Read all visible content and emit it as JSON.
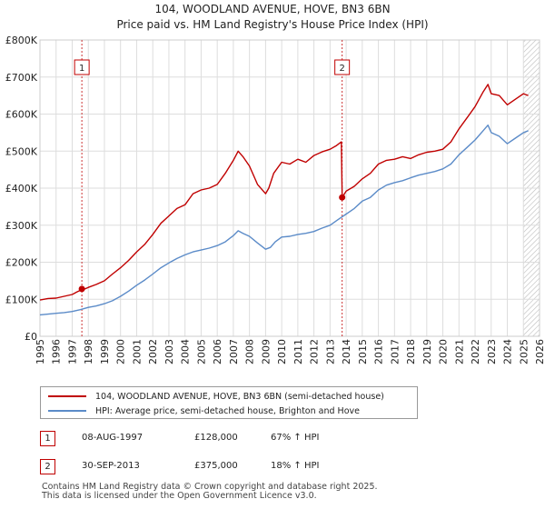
{
  "chart_data": {
    "type": "line",
    "title": "104, WOODLAND AVENUE, HOVE, BN3 6BN",
    "subtitle": "Price paid vs. HM Land Registry's House Price Index (HPI)",
    "xlabel": "",
    "ylabel": "",
    "xlim": [
      1995,
      2026
    ],
    "ylim": [
      0,
      800000
    ],
    "x_ticks": [
      "1995",
      "1996",
      "1997",
      "1998",
      "1999",
      "2000",
      "2001",
      "2002",
      "2003",
      "2004",
      "2005",
      "2006",
      "2007",
      "2008",
      "2009",
      "2010",
      "2011",
      "2012",
      "2013",
      "2014",
      "2015",
      "2016",
      "2017",
      "2018",
      "2019",
      "2020",
      "2021",
      "2022",
      "2023",
      "2024",
      "2025",
      "2026"
    ],
    "y_ticks": [
      {
        "value": 0,
        "label": "£0"
      },
      {
        "value": 100000,
        "label": "£100K"
      },
      {
        "value": 200000,
        "label": "£200K"
      },
      {
        "value": 300000,
        "label": "£300K"
      },
      {
        "value": 400000,
        "label": "£400K"
      },
      {
        "value": 500000,
        "label": "£500K"
      },
      {
        "value": 600000,
        "label": "£600K"
      },
      {
        "value": 700000,
        "label": "£700K"
      },
      {
        "value": 800000,
        "label": "£800K"
      }
    ],
    "grid": true,
    "forecast_start": 2025.0,
    "series": [
      {
        "name": "104, WOODLAND AVENUE, HOVE, BN3 6BN (semi-detached house)",
        "color": "#c00000",
        "x": [
          1995.0,
          1995.5,
          1996.0,
          1996.5,
          1997.0,
          1997.3,
          1997.6,
          1997.8,
          1998.0,
          1998.5,
          1999.0,
          1999.5,
          2000.0,
          2000.5,
          2001.0,
          2001.5,
          2002.0,
          2002.5,
          2003.0,
          2003.5,
          2004.0,
          2004.5,
          2005.0,
          2005.5,
          2006.0,
          2006.5,
          2007.0,
          2007.3,
          2007.6,
          2008.0,
          2008.5,
          2009.0,
          2009.2,
          2009.5,
          2010.0,
          2010.5,
          2011.0,
          2011.5,
          2012.0,
          2012.5,
          2013.0,
          2013.4,
          2013.7,
          2013.75,
          2014.0,
          2014.5,
          2015.0,
          2015.5,
          2016.0,
          2016.5,
          2017.0,
          2017.5,
          2018.0,
          2018.5,
          2019.0,
          2019.5,
          2020.0,
          2020.5,
          2021.0,
          2021.5,
          2022.0,
          2022.5,
          2022.8,
          2023.0,
          2023.5,
          2024.0,
          2024.5,
          2025.0,
          2025.3
        ],
        "values": [
          98000,
          102000,
          103000,
          108000,
          113000,
          120000,
          126000,
          128000,
          132000,
          140000,
          150000,
          168000,
          185000,
          205000,
          228000,
          248000,
          275000,
          305000,
          325000,
          345000,
          355000,
          385000,
          395000,
          400000,
          410000,
          440000,
          475000,
          500000,
          485000,
          460000,
          410000,
          385000,
          400000,
          440000,
          470000,
          465000,
          478000,
          470000,
          488000,
          498000,
          505000,
          515000,
          525000,
          375000,
          392000,
          405000,
          425000,
          440000,
          465000,
          475000,
          478000,
          485000,
          480000,
          490000,
          497000,
          500000,
          505000,
          525000,
          560000,
          590000,
          620000,
          660000,
          680000,
          655000,
          650000,
          625000,
          640000,
          655000,
          650000
        ]
      },
      {
        "name": "HPI: Average price, semi-detached house, Brighton and Hove",
        "color": "#5b8bc8",
        "x": [
          1995.0,
          1995.5,
          1996.0,
          1996.5,
          1997.0,
          1997.5,
          1998.0,
          1998.5,
          1999.0,
          1999.5,
          2000.0,
          2000.5,
          2001.0,
          2001.5,
          2002.0,
          2002.5,
          2003.0,
          2003.5,
          2004.0,
          2004.5,
          2005.0,
          2005.5,
          2006.0,
          2006.5,
          2007.0,
          2007.3,
          2007.6,
          2008.0,
          2008.5,
          2009.0,
          2009.3,
          2009.6,
          2010.0,
          2010.5,
          2011.0,
          2011.5,
          2012.0,
          2012.5,
          2013.0,
          2013.5,
          2014.0,
          2014.5,
          2015.0,
          2015.5,
          2016.0,
          2016.5,
          2017.0,
          2017.5,
          2018.0,
          2018.5,
          2019.0,
          2019.5,
          2020.0,
          2020.5,
          2021.0,
          2021.5,
          2022.0,
          2022.5,
          2022.8,
          2023.0,
          2023.5,
          2024.0,
          2024.5,
          2025.0,
          2025.3
        ],
        "values": [
          58000,
          60000,
          62000,
          64000,
          67000,
          72000,
          78000,
          82000,
          88000,
          96000,
          108000,
          122000,
          138000,
          152000,
          168000,
          185000,
          198000,
          210000,
          220000,
          228000,
          233000,
          238000,
          245000,
          255000,
          272000,
          285000,
          278000,
          270000,
          252000,
          235000,
          240000,
          255000,
          268000,
          270000,
          275000,
          278000,
          283000,
          292000,
          300000,
          315000,
          330000,
          345000,
          365000,
          375000,
          395000,
          408000,
          415000,
          420000,
          428000,
          435000,
          440000,
          445000,
          452000,
          465000,
          490000,
          510000,
          530000,
          555000,
          570000,
          550000,
          540000,
          520000,
          535000,
          550000,
          555000
        ]
      }
    ],
    "markers": [
      {
        "label": "1",
        "x": 1997.6,
        "value": 128000,
        "color": "#c00000"
      },
      {
        "label": "2",
        "x": 2013.75,
        "value": 375000,
        "color": "#c00000"
      }
    ]
  },
  "legend": {
    "property_label": "104, WOODLAND AVENUE, HOVE, BN3 6BN (semi-detached house)",
    "hpi_label": "HPI: Average price, semi-detached house, Brighton and Hove",
    "property_color": "#c00000",
    "hpi_color": "#5b8bc8"
  },
  "transactions": [
    {
      "num": "1",
      "date": "08-AUG-1997",
      "price": "£128,000",
      "hpi": "67% ↑ HPI"
    },
    {
      "num": "2",
      "date": "30-SEP-2013",
      "price": "£375,000",
      "hpi": "18% ↑ HPI"
    }
  ],
  "footer": {
    "line1": "Contains HM Land Registry data © Crown copyright and database right 2025.",
    "line2": "This data is licensed under the Open Government Licence v3.0."
  }
}
